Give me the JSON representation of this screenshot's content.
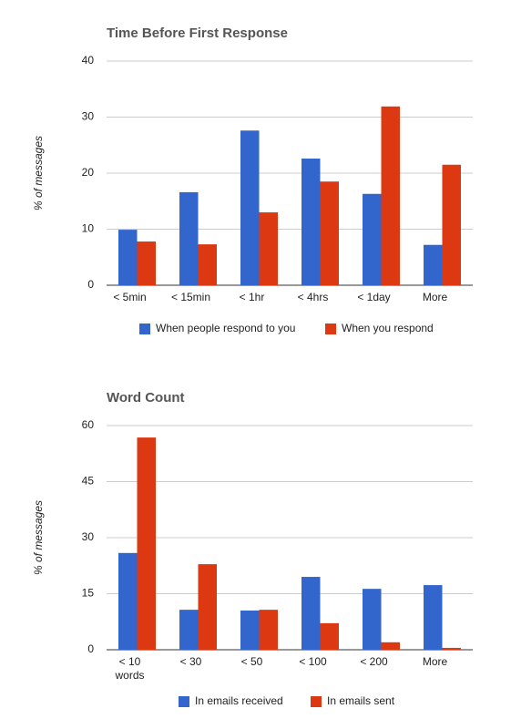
{
  "chart_data": [
    {
      "type": "bar",
      "title": "Time Before First Response",
      "y_label": "% of messages",
      "categories": [
        "< 5min",
        "< 15min",
        "< 1hr",
        "< 4hrs",
        "< 1day",
        "More"
      ],
      "series": [
        {
          "name": "When people respond to you",
          "color": "#3366cc",
          "values": [
            9.9,
            16.6,
            27.6,
            22.6,
            16.3,
            7.2
          ]
        },
        {
          "name": "When you respond",
          "color": "#dc3912",
          "values": [
            7.8,
            7.3,
            13.0,
            18.5,
            31.9,
            21.5
          ]
        }
      ],
      "ylim": [
        0,
        40
      ],
      "yticks": [
        0,
        10,
        20,
        30,
        40
      ],
      "grid": true,
      "legend": "bottom"
    },
    {
      "type": "bar",
      "title": "Word Count",
      "y_label": "% of messages",
      "categories": [
        "< 10 words",
        "< 30",
        "< 50",
        "< 100",
        "< 200",
        "More"
      ],
      "series": [
        {
          "name": "In emails received",
          "color": "#3366cc",
          "values": [
            25.9,
            10.7,
            10.5,
            19.5,
            16.3,
            17.3
          ]
        },
        {
          "name": "In emails sent",
          "color": "#dc3912",
          "values": [
            56.8,
            22.9,
            10.7,
            7.1,
            2.0,
            0.5
          ]
        }
      ],
      "ylim": [
        0,
        60
      ],
      "yticks": [
        0,
        15,
        30,
        45,
        60
      ],
      "grid": true,
      "legend": "bottom"
    }
  ]
}
